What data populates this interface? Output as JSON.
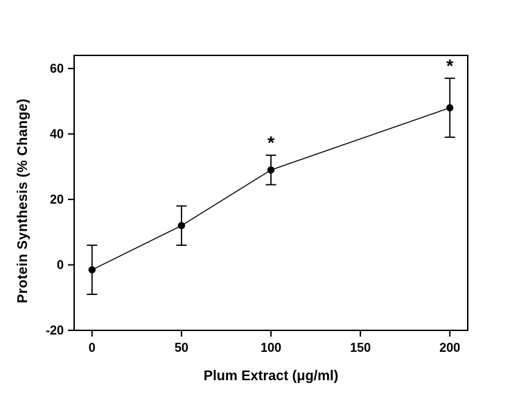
{
  "figure": {
    "background_color": "#ffffff"
  },
  "chart_data": {
    "type": "line",
    "title": "",
    "xlabel": "Plum Extract (μg/ml)",
    "ylabel": "Protein Synthesis (% Change)",
    "x": [
      0,
      50,
      100,
      200
    ],
    "y": [
      -1.5,
      12,
      29,
      48
    ],
    "y_error": [
      7.5,
      6,
      4.5,
      9
    ],
    "significance": [
      false,
      false,
      true,
      true
    ],
    "significance_symbol": "*",
    "xticks": [
      0,
      50,
      100,
      150,
      200
    ],
    "yticks": [
      -20,
      0,
      20,
      40,
      60
    ],
    "xlim": [
      -10,
      210
    ],
    "ylim": [
      -20,
      64
    ],
    "grid": false,
    "legend": "none",
    "marker": "filled-circle",
    "error_bars": "vertical-capped",
    "colors": {
      "axis": "#000000",
      "line": "#000000",
      "marker": "#000000",
      "text": "#000000",
      "background": "#ffffff"
    }
  }
}
